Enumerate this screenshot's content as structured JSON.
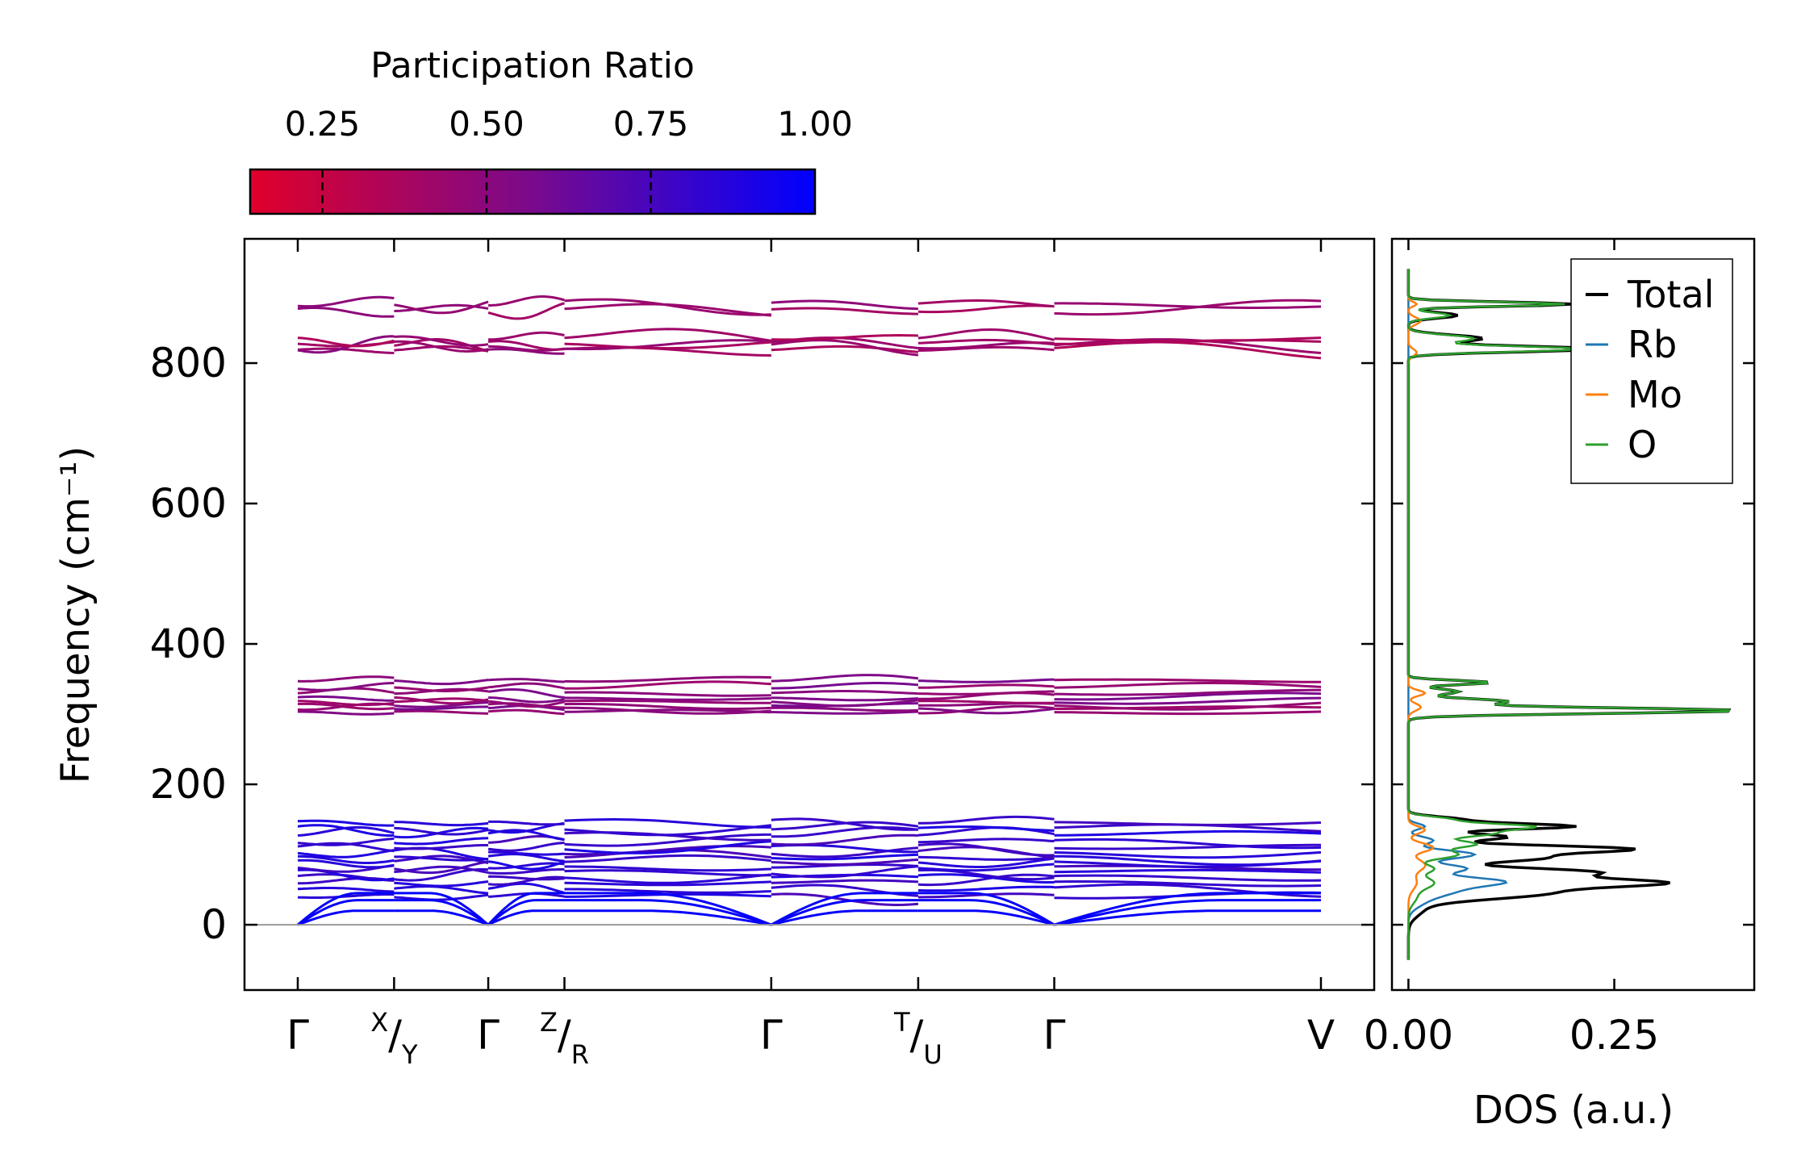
{
  "chart_data": [
    {
      "type": "line",
      "name": "phonon-band-structure",
      "ylabel": "Frequency (cm⁻¹)",
      "ylim": [
        -93,
        977
      ],
      "yticks": [
        0,
        200,
        400,
        600,
        800
      ],
      "ytick_labels": [
        "0",
        "200",
        "400",
        "600",
        "800"
      ],
      "path_ticks": [
        0.0,
        0.177,
        0.35,
        0.49,
        0.87,
        1.14,
        1.39,
        1.88
      ],
      "path_labels": [
        {
          "main": "Γ"
        },
        {
          "sup": "X",
          "slash": "/",
          "sub": "Y"
        },
        {
          "main": "Γ"
        },
        {
          "sup": "Z",
          "slash": "/",
          "sub": "R"
        },
        {
          "main": "Γ"
        },
        {
          "sup": "T",
          "slash": "/",
          "sub": "U"
        },
        {
          "main": "Γ"
        },
        {
          "main": "V"
        }
      ],
      "zero_line": 0,
      "colorbar": {
        "label": "Participation Ratio",
        "min": 0.14,
        "max": 1.0,
        "ticks": [
          0.25,
          0.5,
          0.75,
          1.0
        ],
        "tick_labels": [
          "0.25",
          "0.50",
          "0.75",
          "1.00"
        ],
        "color_low": "#e0002a",
        "color_mid": "#7a0a8c",
        "color_high": "#0000ff"
      },
      "band_groups": [
        {
          "name": "high",
          "base": [
            818,
            823,
            828,
            835,
            875,
            884
          ],
          "amplitude": 14,
          "participation": 0.42
        },
        {
          "name": "mid",
          "base": [
            303,
            308,
            313,
            318,
            323,
            330,
            338,
            348
          ],
          "amplitude": 7,
          "participation": 0.5
        },
        {
          "name": "low-optical",
          "base": [
            40,
            50,
            60,
            68,
            75,
            82,
            90,
            96,
            103,
            110,
            118,
            128,
            137,
            146
          ],
          "amplitude": 10,
          "participation": 0.82
        },
        {
          "name": "acoustic",
          "gamma": 0,
          "zone_edge": [
            20,
            35,
            45
          ],
          "participation": 0.98
        }
      ]
    },
    {
      "type": "line",
      "name": "phonon-dos",
      "xlabel": "DOS (a.u.)",
      "xlim": [
        -0.02,
        0.42
      ],
      "xticks": [
        0.0,
        0.25
      ],
      "xtick_labels": [
        "0.00",
        "0.25"
      ],
      "ylim": [
        -93,
        977
      ],
      "legend_position": "top-right",
      "series": [
        {
          "name": "Total",
          "color": "#000000",
          "peaks": [
            [
              25,
              0.02,
              12
            ],
            [
              45,
              0.16,
              8
            ],
            [
              60,
              0.28,
              6
            ],
            [
              75,
              0.22,
              6
            ],
            [
              95,
              0.16,
              6
            ],
            [
              108,
              0.26,
              5
            ],
            [
              125,
              0.12,
              5
            ],
            [
              140,
              0.2,
              4
            ],
            [
              150,
              0.06,
              4
            ],
            [
              305,
              0.4,
              4
            ],
            [
              318,
              0.12,
              4
            ],
            [
              332,
              0.06,
              4
            ],
            [
              345,
              0.1,
              3
            ],
            [
              820,
              0.23,
              4
            ],
            [
              835,
              0.09,
              5
            ],
            [
              868,
              0.06,
              4
            ],
            [
              884,
              0.2,
              3
            ]
          ]
        },
        {
          "name": "Rb",
          "color": "#1f77b4",
          "peaks": [
            [
              35,
              0.02,
              10
            ],
            [
              50,
              0.05,
              8
            ],
            [
              62,
              0.1,
              6
            ],
            [
              80,
              0.07,
              6
            ],
            [
              100,
              0.08,
              6
            ],
            [
              120,
              0.03,
              5
            ],
            [
              140,
              0.02,
              4
            ]
          ]
        },
        {
          "name": "Mo",
          "color": "#ff7f0e",
          "peaks": [
            [
              60,
              0.01,
              10
            ],
            [
              85,
              0.02,
              8
            ],
            [
              110,
              0.03,
              6
            ],
            [
              135,
              0.02,
              5
            ],
            [
              310,
              0.015,
              5
            ],
            [
              330,
              0.02,
              4
            ],
            [
              815,
              0.01,
              5
            ],
            [
              860,
              0.015,
              5
            ],
            [
              884,
              0.01,
              3
            ]
          ]
        },
        {
          "name": "O",
          "color": "#2ca02c",
          "peaks": [
            [
              40,
              0.01,
              10
            ],
            [
              60,
              0.03,
              8
            ],
            [
              80,
              0.03,
              6
            ],
            [
              100,
              0.06,
              6
            ],
            [
              115,
              0.08,
              5
            ],
            [
              130,
              0.1,
              5
            ],
            [
              140,
              0.14,
              4
            ],
            [
              150,
              0.05,
              4
            ],
            [
              305,
              0.4,
              4
            ],
            [
              318,
              0.12,
              4
            ],
            [
              332,
              0.06,
              4
            ],
            [
              345,
              0.1,
              3
            ],
            [
              820,
              0.21,
              4
            ],
            [
              835,
              0.08,
              5
            ],
            [
              868,
              0.05,
              4
            ],
            [
              884,
              0.19,
              3
            ]
          ]
        }
      ]
    }
  ]
}
